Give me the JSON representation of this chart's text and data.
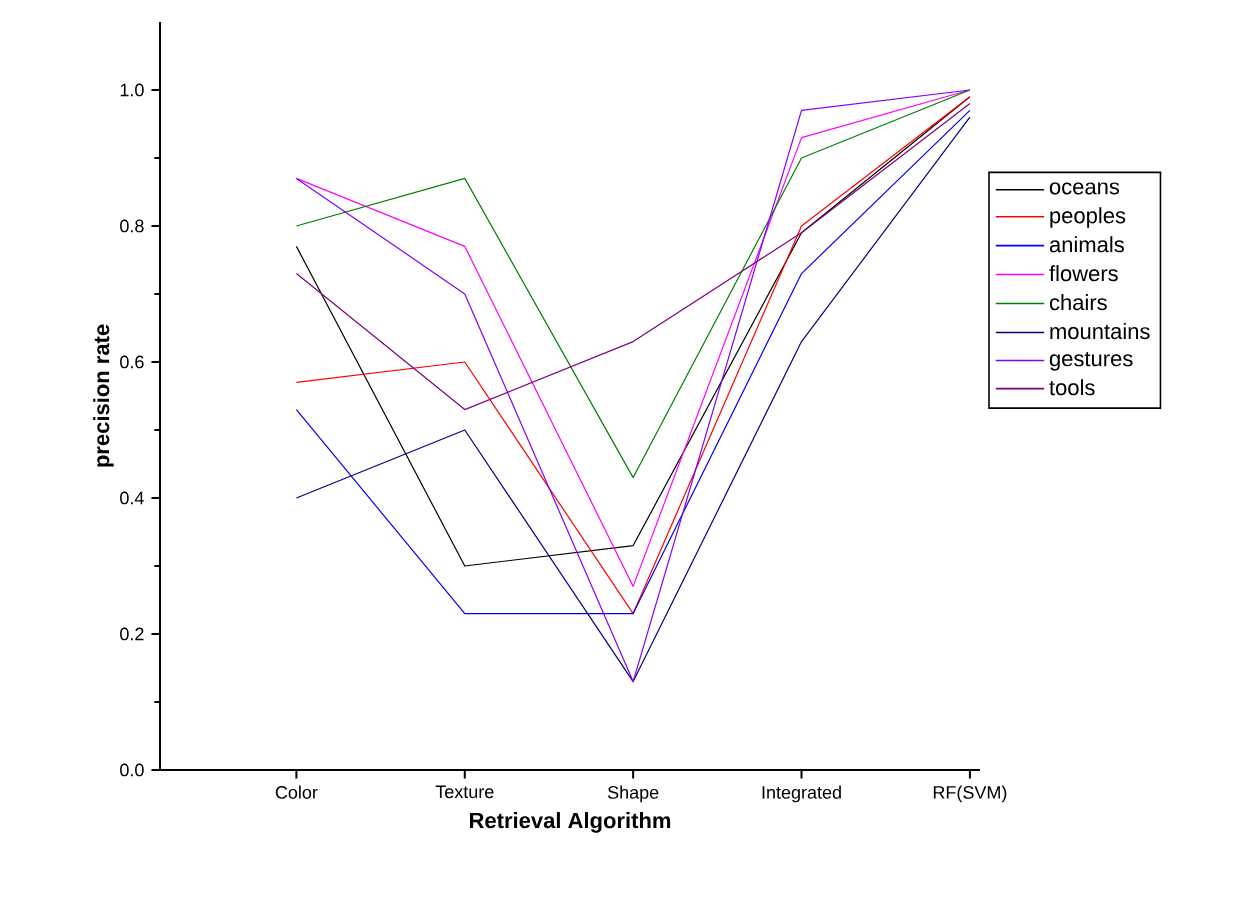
{
  "chart_data": {
    "type": "line",
    "xlabel": "Retrieval Algorithm",
    "ylabel": "precision rate",
    "categories": [
      "Color",
      "Texture",
      "Shape",
      "Integrated",
      "RF(SVM)"
    ],
    "series": [
      {
        "name": "oceans",
        "color": "#000000",
        "values": [
          0.77,
          0.3,
          0.33,
          0.79,
          0.99
        ]
      },
      {
        "name": "peoples",
        "color": "#ff0000",
        "values": [
          0.57,
          0.6,
          0.23,
          0.8,
          0.99
        ]
      },
      {
        "name": "animals",
        "color": "#0000ff",
        "values": [
          0.53,
          0.23,
          0.23,
          0.73,
          0.97
        ]
      },
      {
        "name": "flowers",
        "color": "#ff00ff",
        "values": [
          0.87,
          0.77,
          0.27,
          0.93,
          1.0
        ]
      },
      {
        "name": "chairs",
        "color": "#008000",
        "values": [
          0.8,
          0.87,
          0.43,
          0.9,
          1.0
        ]
      },
      {
        "name": "mountains",
        "color": "#000080",
        "values": [
          0.4,
          0.5,
          0.13,
          0.63,
          0.96
        ]
      },
      {
        "name": "gestures",
        "color": "#8000ff",
        "values": [
          0.87,
          0.7,
          0.13,
          0.97,
          1.0
        ]
      },
      {
        "name": "tools",
        "color": "#800080",
        "values": [
          0.73,
          0.53,
          0.63,
          0.79,
          0.98
        ]
      }
    ],
    "ylim": [
      0,
      1.1
    ],
    "yticks": [
      {
        "value": 0,
        "label": "0.0"
      },
      {
        "value": 0.2,
        "label": "0.2"
      },
      {
        "value": 0.4,
        "label": "0.4"
      },
      {
        "value": 0.6,
        "label": "0.6"
      },
      {
        "value": 0.8,
        "label": "0.8"
      },
      {
        "value": 1.0,
        "label": "1.0"
      }
    ],
    "legend": "right",
    "grid": false,
    "marker": "none",
    "line_style": "solid"
  }
}
